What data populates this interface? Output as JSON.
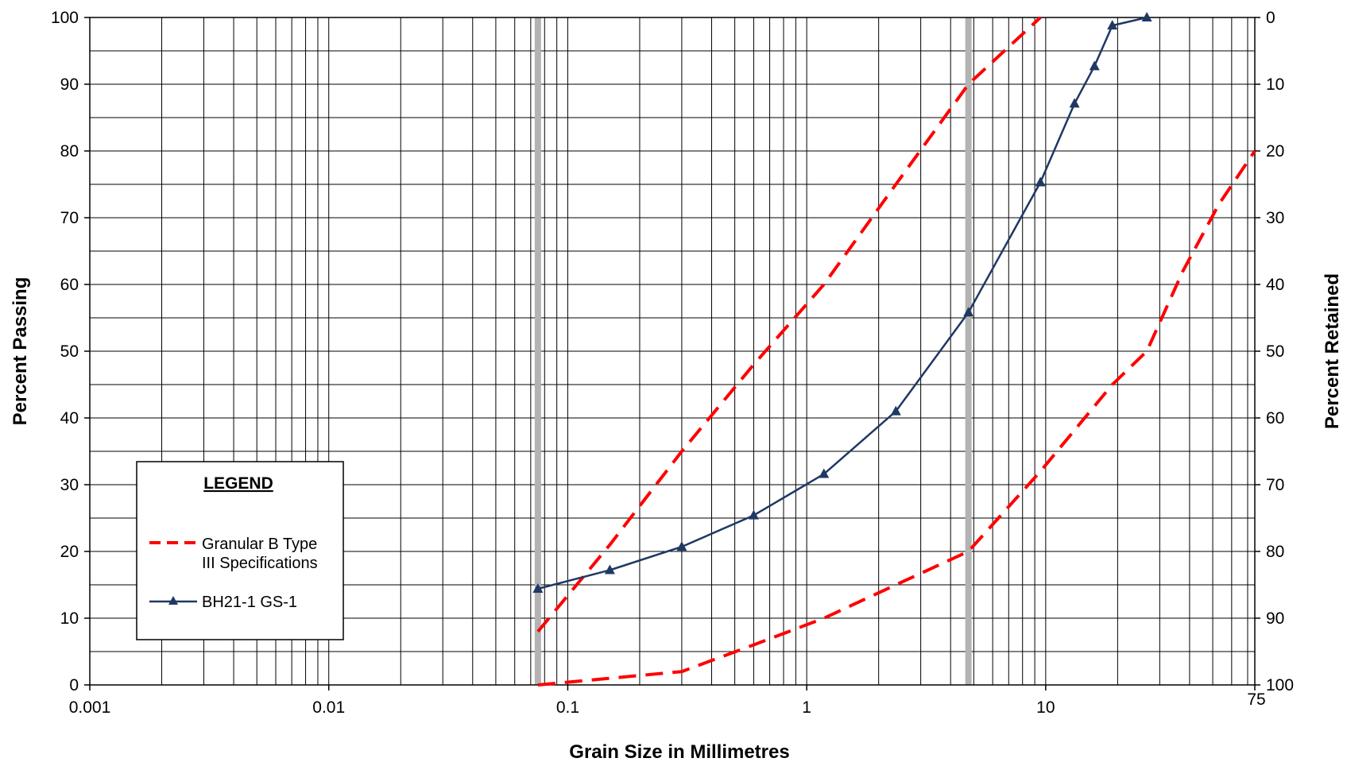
{
  "chart_data": {
    "type": "line",
    "x_scale": "log",
    "xlim": [
      0.001,
      75
    ],
    "ylim": [
      0,
      100
    ],
    "y2lim": [
      100,
      0
    ],
    "xlabel": "Grain Size in Millimetres",
    "ylabel": "Percent Passing",
    "y2label": "Percent Retained",
    "x_tick_labels": [
      "0.001",
      "0.01",
      "0.1",
      "1",
      "10",
      "75"
    ],
    "x_tick_values": [
      0.001,
      0.01,
      0.1,
      1,
      10,
      75
    ],
    "y_tick_values": [
      0,
      10,
      20,
      30,
      40,
      50,
      60,
      70,
      80,
      90,
      100
    ],
    "y2_tick_values": [
      100,
      90,
      80,
      70,
      60,
      50,
      40,
      30,
      20,
      10,
      0
    ],
    "grid": true,
    "highlight_sizes": [
      0.075,
      4.75
    ],
    "legend": {
      "title": "LEGEND",
      "position": "lower-left",
      "entries": [
        {
          "label_line1": "Granular B Type",
          "label_line2": "III Specifications"
        },
        {
          "label_line1": "BH21-1 GS-1",
          "label_line2": ""
        }
      ]
    },
    "series": [
      {
        "name": "Granular B Type III Specifications",
        "color": "#ff0000",
        "style": "dashed",
        "marker": "none",
        "x": [
          0.075,
          0.15,
          0.3,
          0.6,
          1.18,
          2.36,
          4.75,
          9.5
        ],
        "values": [
          8,
          21,
          35,
          48,
          60,
          75,
          90,
          100
        ]
      },
      {
        "name": "Granular B Type III Specifications",
        "color": "#ff0000",
        "style": "dashed",
        "marker": "none",
        "x": [
          0.075,
          0.15,
          0.3,
          0.6,
          1.18,
          2.36,
          4.75,
          9.5,
          19,
          26.5,
          37.5,
          53,
          75
        ],
        "values": [
          0,
          1,
          2,
          6,
          10,
          15,
          20,
          32,
          45,
          50,
          62,
          72,
          80
        ]
      },
      {
        "name": "BH21-1 GS-1",
        "color": "#1f3864",
        "style": "solid",
        "marker": "triangle",
        "x": [
          0.075,
          0.15,
          0.3,
          0.6,
          1.18,
          2.36,
          4.75,
          9.5,
          13.2,
          16,
          19,
          26.5
        ],
        "values": [
          14.4,
          17.2,
          20.7,
          25.4,
          31.6,
          41,
          55.8,
          75.3,
          87.1,
          92.7,
          98.8,
          100
        ]
      }
    ]
  }
}
